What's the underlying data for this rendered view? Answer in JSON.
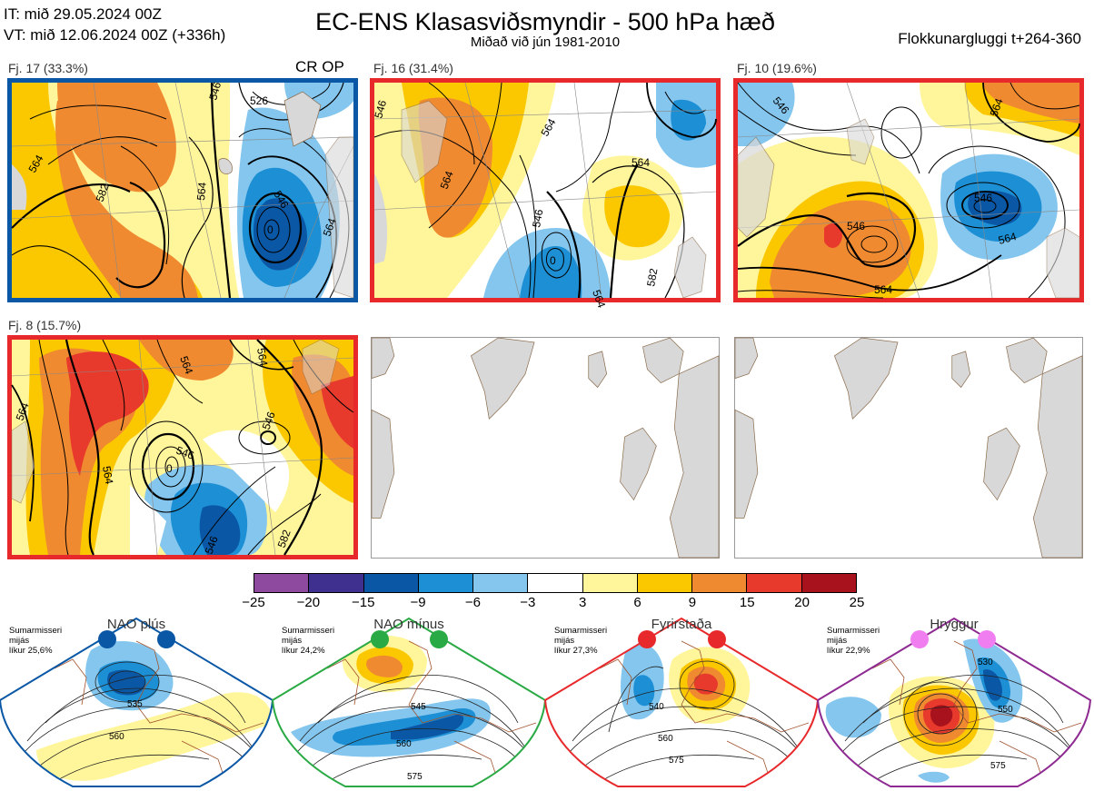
{
  "header": {
    "it_line": "IT: mið 29.05.2024 00Z",
    "vt_line": "VT: mið 12.06.2024 00Z  (+336h)",
    "title": "EC-ENS Klasasviðsmyndir - 500 hPa hæð",
    "subtitle": "Miðað við jún 1981-2010",
    "window": "Flokkunargluggi t+264-360"
  },
  "clusters": [
    {
      "label": "Fj. 17 (33.3%)",
      "op": "CR OP",
      "border_color": "#0a57a6",
      "contours": [
        "546",
        "526",
        "564",
        "582",
        "564",
        "546",
        "564",
        "0"
      ]
    },
    {
      "label": "Fj. 16 (31.4%)",
      "border_color": "#e8292c",
      "contours": [
        "546",
        "564",
        "564",
        "546",
        "564",
        "0",
        "564",
        "582"
      ]
    },
    {
      "label": "Fj. 10 (19.6%)",
      "border_color": "#e8292c",
      "contours": [
        "546",
        "564",
        "546",
        "546",
        "564",
        "564"
      ]
    },
    {
      "label": "Fj. 8 (15.7%)",
      "border_color": "#e8292c",
      "contours": [
        "564",
        "564",
        "546",
        "546",
        "0",
        "564",
        "564",
        "546",
        "582"
      ]
    }
  ],
  "colorbar": {
    "ticks": [
      "−25",
      "−20",
      "−15",
      "−9",
      "−6",
      "−3",
      "3",
      "6",
      "9",
      "15",
      "20",
      "25"
    ],
    "colors": [
      "#8e4a9e",
      "#3f2f8f",
      "#0a57a6",
      "#1d8fd4",
      "#84c6ee",
      "#ffffff",
      "#fff59a",
      "#fbc800",
      "#f08a30",
      "#e83a2c",
      "#a8121c"
    ]
  },
  "regimes": [
    {
      "title": "NAO plús",
      "note": [
        "Sumarmisseri",
        "mijás",
        "líkur 25,6%"
      ],
      "color": "#0a57a6",
      "contours": [
        "535",
        "560"
      ]
    },
    {
      "title": "NAO mínus",
      "note": [
        "Sumarmisseri",
        "mijás",
        "líkur 24,2%"
      ],
      "color": "#2aaa44",
      "contours": [
        "545",
        "560",
        "575"
      ]
    },
    {
      "title": "Fyrirstaða",
      "note": [
        "Sumarmisseri",
        "mijás",
        "líkur 27,3%"
      ],
      "color": "#e8292c",
      "contours": [
        "540",
        "560",
        "575"
      ]
    },
    {
      "title": "Hryggur",
      "note": [
        "Sumarmisseri",
        "mijás",
        "líkur 22,9%"
      ],
      "color": "#8e2a92",
      "dot_color": "#f07ef0",
      "contours": [
        "530",
        "550",
        "575"
      ]
    }
  ]
}
